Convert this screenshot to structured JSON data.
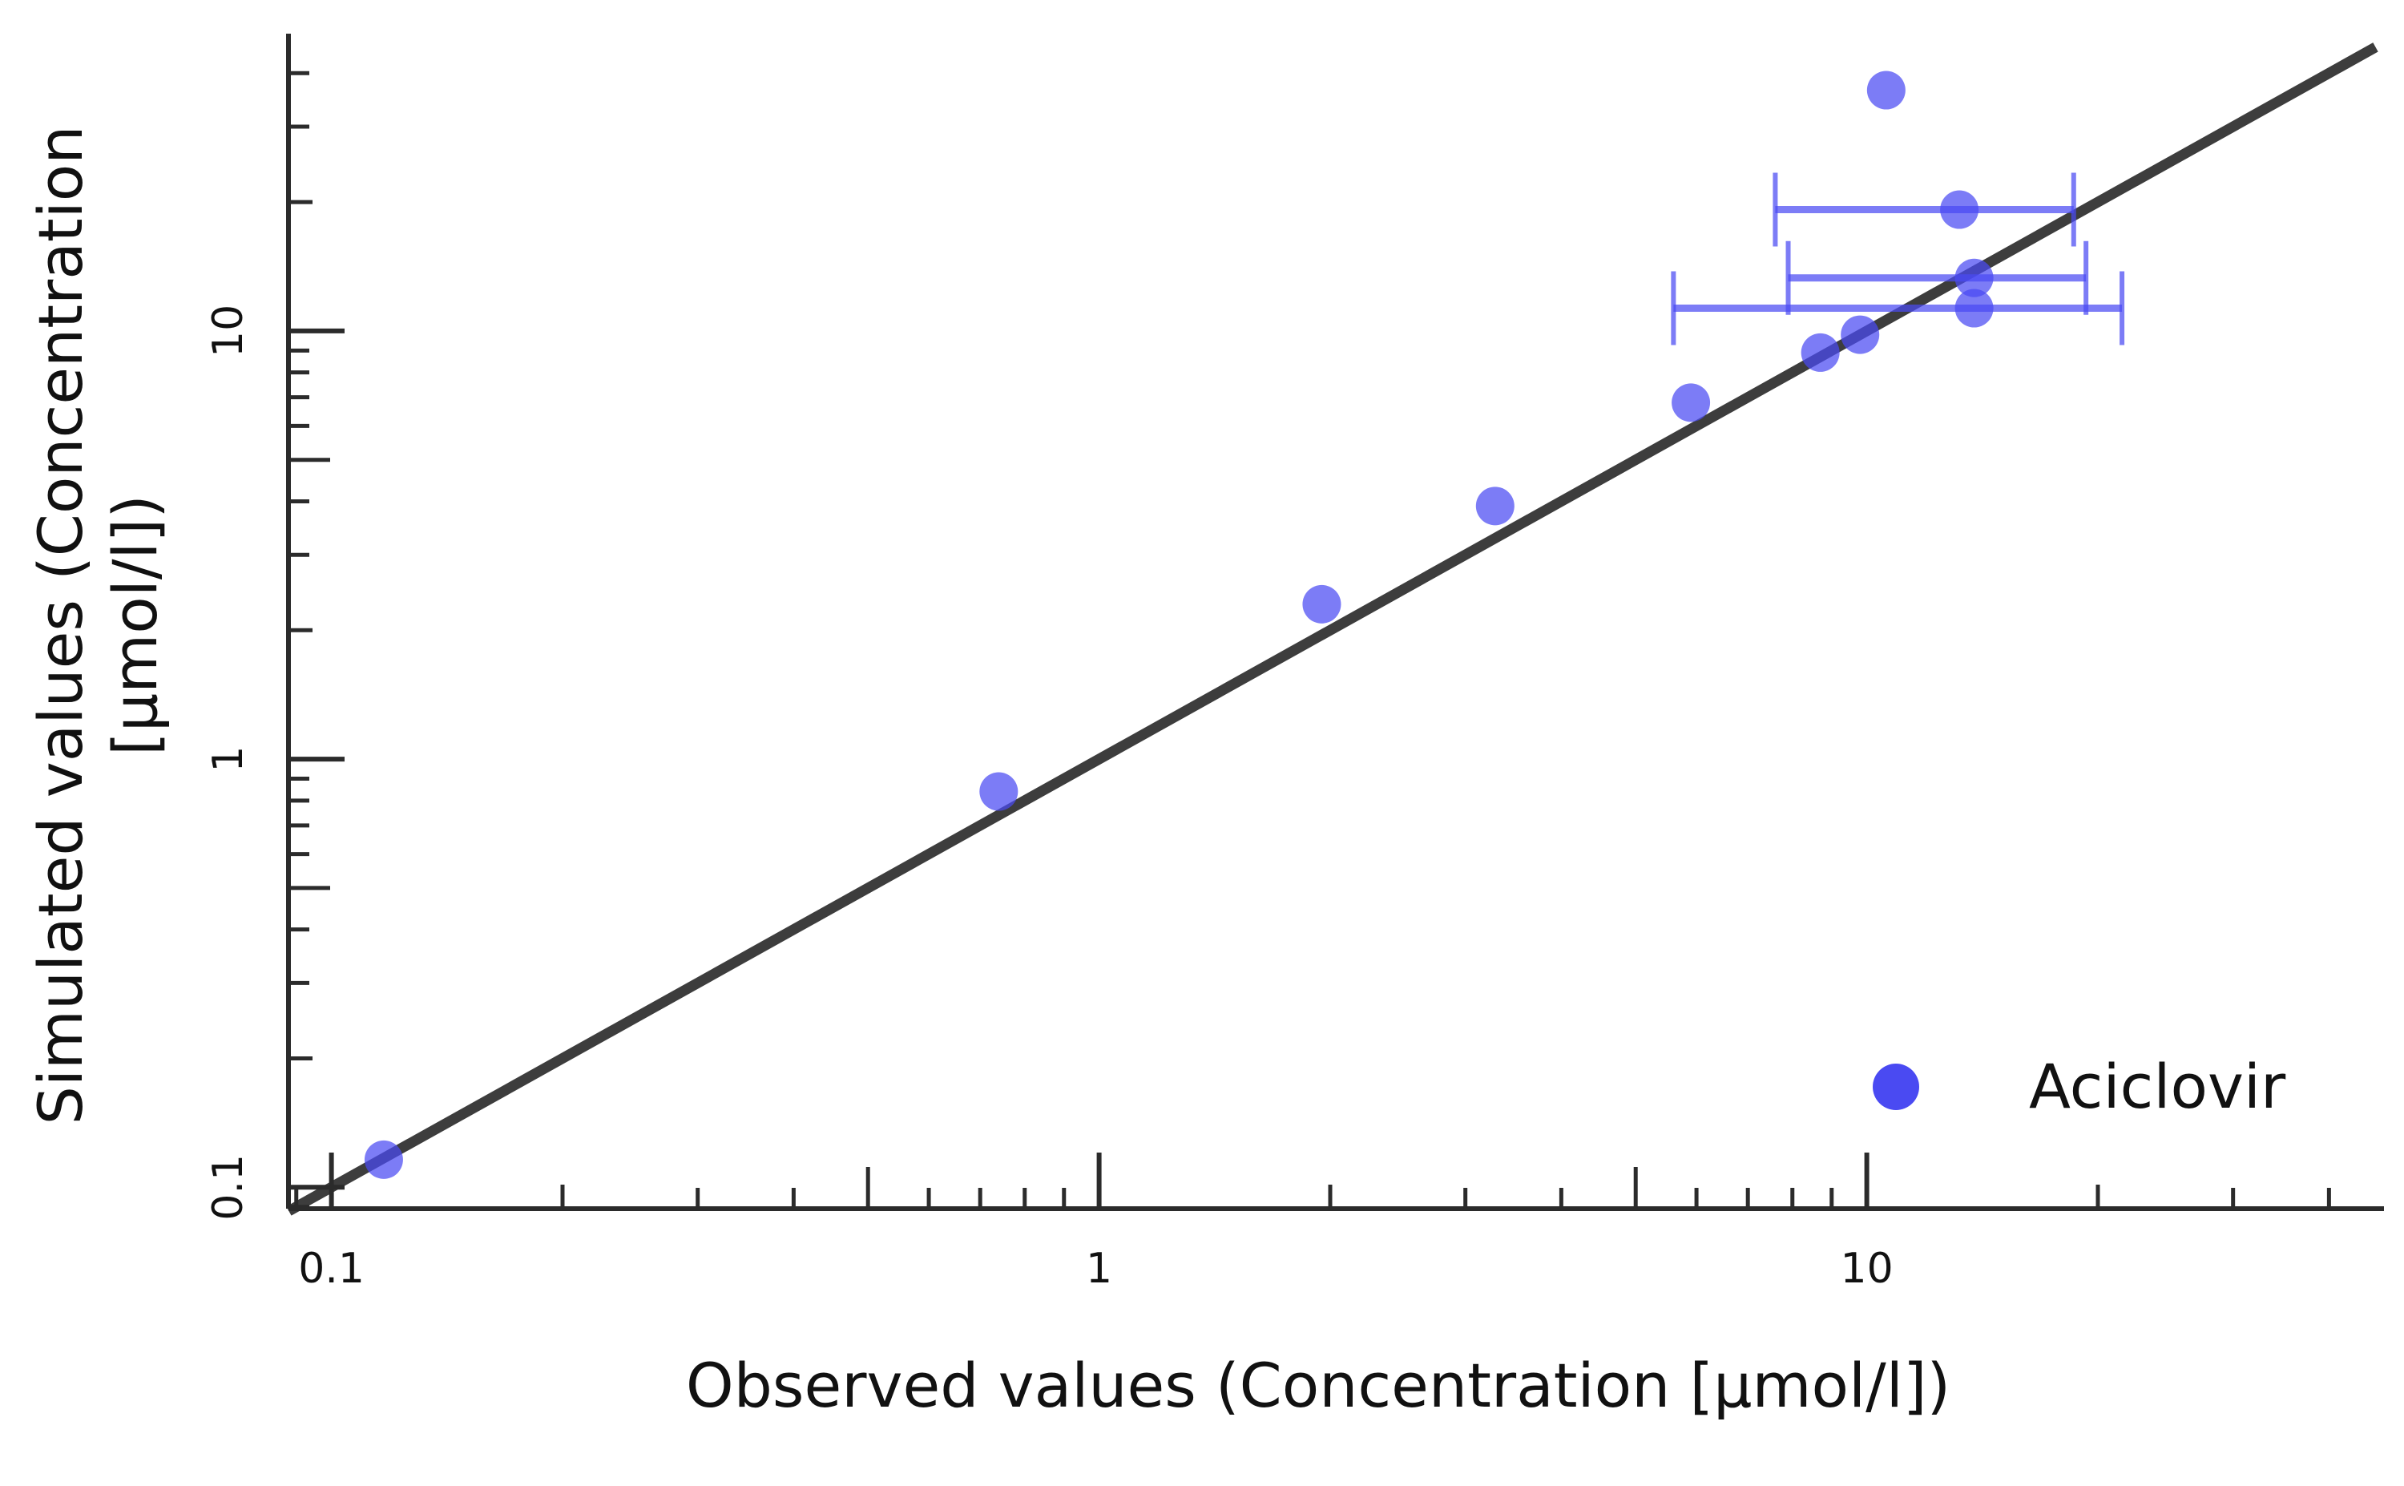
{
  "chart_data": {
    "type": "scatter",
    "title": "",
    "xlabel": "Observed values (Concentration [µmol/l])",
    "ylabel_line1": "Simulated values (Concentration",
    "ylabel_line2": "[µmol/l])",
    "x_scale": "log",
    "y_scale": "log",
    "xlim": [
      0.088,
      46
    ],
    "ylim": [
      0.088,
      46
    ],
    "x_ticks": [
      {
        "value": 0.1,
        "label": "0.1"
      },
      {
        "value": 1,
        "label": "1"
      },
      {
        "value": 10,
        "label": "10"
      }
    ],
    "y_ticks": [
      {
        "value": 0.1,
        "label": "0.1"
      },
      {
        "value": 1,
        "label": "1"
      },
      {
        "value": 10,
        "label": "10"
      }
    ],
    "grid": false,
    "legend_position": "bottom-right",
    "identity_line": {
      "color": "#3d3d3d"
    },
    "series": [
      {
        "name": "Aciclovir",
        "color": "#4a4af2",
        "points": [
          {
            "x": 0.117,
            "y": 0.116
          },
          {
            "x": 0.74,
            "y": 0.84
          },
          {
            "x": 1.95,
            "y": 2.3
          },
          {
            "x": 3.28,
            "y": 3.9
          },
          {
            "x": 5.9,
            "y": 6.8
          },
          {
            "x": 8.7,
            "y": 8.9
          },
          {
            "x": 9.8,
            "y": 9.8
          },
          {
            "x": 10.6,
            "y": 36.5
          },
          {
            "x": 13.2,
            "y": 19.2,
            "x_err": [
              7.6,
              18.6
            ]
          },
          {
            "x": 13.8,
            "y": 13.3,
            "x_err": [
              7.9,
              19.3
            ]
          },
          {
            "x": 13.8,
            "y": 11.3,
            "x_err": [
              5.6,
              21.5
            ]
          }
        ]
      }
    ]
  }
}
